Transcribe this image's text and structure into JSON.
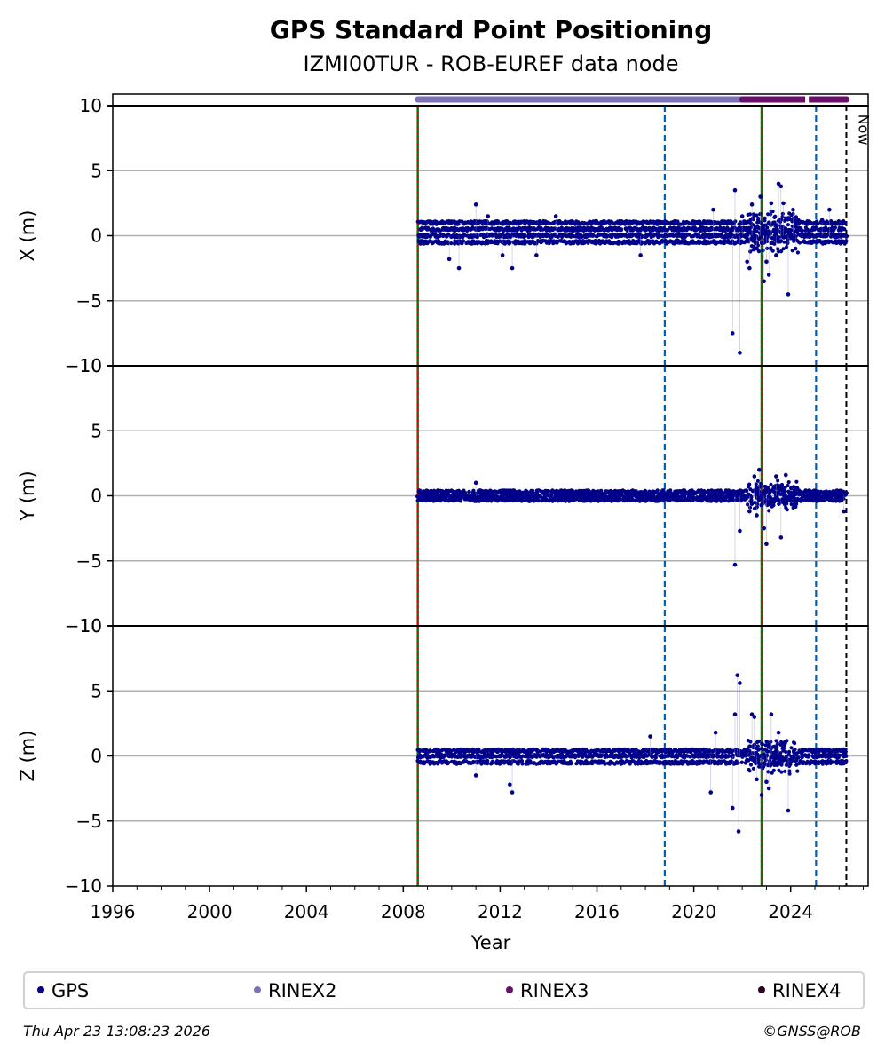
{
  "title": "GPS Standard Point Positioning",
  "subtitle": "IZMI00TUR - ROB-EUREF data node",
  "footer": {
    "timestamp": "Thu Apr 23 13:08:23 2026",
    "copyright": "©GNSS@ROB"
  },
  "legend": [
    {
      "label": "GPS",
      "color": "#00008b"
    },
    {
      "label": "RINEX2",
      "color": "#7b72b8"
    },
    {
      "label": "RINEX3",
      "color": "#6a0f6a"
    },
    {
      "label": "RINEX4",
      "color": "#2a0020"
    }
  ],
  "chart_data": {
    "type": "scatter",
    "xlabel": "Year",
    "xlim": [
      1996,
      2027.2
    ],
    "x_ticks": [
      "1996",
      "2000",
      "2004",
      "2008",
      "2012",
      "2016",
      "2020",
      "2024"
    ],
    "x_tick_values": [
      1996,
      2000,
      2004,
      2008,
      2012,
      2016,
      2020,
      2024
    ],
    "grid": "horizontal",
    "legend_position": "bottom",
    "now_label": "Now",
    "now_year": 2026.3,
    "station_changes": [
      2008.6,
      2022.8
    ],
    "equipment_changes": [
      2018.8,
      2025.05
    ],
    "availability": [
      {
        "name": "RINEX2",
        "start": 2008.6,
        "end": 2026.3,
        "color": "#7b72b8"
      },
      {
        "name": "RINEX3",
        "start": 2022.0,
        "end": 2026.3,
        "color": "#6a0f6a"
      }
    ],
    "series_color": "#00008b",
    "panels": [
      {
        "ylabel": "X (m)",
        "ylim": [
          -10,
          10
        ],
        "y_ticks": [
          "−10",
          "−5",
          "0",
          "5",
          "10"
        ],
        "y_tick_values": [
          -10,
          -5,
          0,
          5,
          10
        ],
        "band": {
          "start": 2008.6,
          "end": 2026.3,
          "levels": [
            -0.5,
            0,
            0.5,
            1.0
          ]
        },
        "outliers": [
          {
            "x": 2009.9,
            "y": -1.8
          },
          {
            "x": 2010.3,
            "y": -2.5
          },
          {
            "x": 2011.0,
            "y": 2.4
          },
          {
            "x": 2011.5,
            "y": 1.5
          },
          {
            "x": 2012.1,
            "y": -1.5
          },
          {
            "x": 2012.5,
            "y": -2.5
          },
          {
            "x": 2013.5,
            "y": -1.5
          },
          {
            "x": 2014.3,
            "y": 1.5
          },
          {
            "x": 2017.8,
            "y": -1.5
          },
          {
            "x": 2020.8,
            "y": 2.0
          },
          {
            "x": 2021.6,
            "y": -7.5
          },
          {
            "x": 2021.7,
            "y": 3.5
          },
          {
            "x": 2021.9,
            "y": -9.0
          },
          {
            "x": 2022.0,
            "y": 1.5
          },
          {
            "x": 2022.2,
            "y": -2.0
          },
          {
            "x": 2022.4,
            "y": 2.4
          },
          {
            "x": 2022.6,
            "y": -1.0
          },
          {
            "x": 2022.75,
            "y": 3.0
          },
          {
            "x": 2022.9,
            "y": -3.5
          },
          {
            "x": 2023.0,
            "y": -2.0
          },
          {
            "x": 2023.2,
            "y": 2.5
          },
          {
            "x": 2023.4,
            "y": -1.5
          },
          {
            "x": 2023.5,
            "y": 4.0
          },
          {
            "x": 2023.6,
            "y": 3.8
          },
          {
            "x": 2023.7,
            "y": 2.5
          },
          {
            "x": 2023.9,
            "y": -4.5
          },
          {
            "x": 2024.1,
            "y": 2.0
          },
          {
            "x": 2024.2,
            "y": -1.0
          },
          {
            "x": 2025.3,
            "y": 1.2
          },
          {
            "x": 2025.6,
            "y": 2.0
          },
          {
            "x": 2022.3,
            "y": -2.5
          },
          {
            "x": 2023.1,
            "y": -3.0
          }
        ]
      },
      {
        "ylabel": "Y (m)",
        "ylim": [
          -10,
          10
        ],
        "y_ticks": [
          "−10",
          "−5",
          "0",
          "5",
          "10"
        ],
        "y_tick_values": [
          -10,
          -5,
          0,
          5,
          10
        ],
        "band": {
          "start": 2008.6,
          "end": 2026.3,
          "levels": [
            -0.3,
            0,
            0.3
          ]
        },
        "outliers": [
          {
            "x": 2011.0,
            "y": 1.0
          },
          {
            "x": 2021.7,
            "y": -5.3
          },
          {
            "x": 2021.9,
            "y": -2.7
          },
          {
            "x": 2022.5,
            "y": 1.5
          },
          {
            "x": 2022.7,
            "y": 2.0
          },
          {
            "x": 2022.9,
            "y": -2.5
          },
          {
            "x": 2023.0,
            "y": -3.7
          },
          {
            "x": 2023.4,
            "y": 1.5
          },
          {
            "x": 2023.6,
            "y": -3.2
          },
          {
            "x": 2023.8,
            "y": 1.6
          },
          {
            "x": 2022.3,
            "y": -1.2
          },
          {
            "x": 2022.6,
            "y": -1.5
          },
          {
            "x": 2026.2,
            "y": -1.2
          }
        ]
      },
      {
        "ylabel": "Z (m)",
        "ylim": [
          -10,
          10
        ],
        "y_ticks": [
          "−10",
          "−5",
          "0",
          "5",
          "10"
        ],
        "y_tick_values": [
          -10,
          -5,
          0,
          5,
          10
        ],
        "band": {
          "start": 2008.6,
          "end": 2026.3,
          "levels": [
            -0.5,
            0,
            0.4
          ]
        },
        "outliers": [
          {
            "x": 2011.0,
            "y": -1.5
          },
          {
            "x": 2012.4,
            "y": -2.2
          },
          {
            "x": 2012.5,
            "y": -2.8
          },
          {
            "x": 2018.2,
            "y": 1.5
          },
          {
            "x": 2020.7,
            "y": -2.8
          },
          {
            "x": 2020.9,
            "y": 1.8
          },
          {
            "x": 2021.6,
            "y": -4.0
          },
          {
            "x": 2021.7,
            "y": 3.2
          },
          {
            "x": 2021.8,
            "y": 6.2
          },
          {
            "x": 2021.85,
            "y": -5.8
          },
          {
            "x": 2021.9,
            "y": 5.6
          },
          {
            "x": 2022.4,
            "y": 3.2
          },
          {
            "x": 2022.5,
            "y": 3.0
          },
          {
            "x": 2022.8,
            "y": -3.0
          },
          {
            "x": 2023.1,
            "y": -2.5
          },
          {
            "x": 2023.2,
            "y": 3.2
          },
          {
            "x": 2023.5,
            "y": 1.8
          },
          {
            "x": 2023.9,
            "y": -4.2
          },
          {
            "x": 2022.6,
            "y": -1.8
          },
          {
            "x": 2023.0,
            "y": -2.0
          }
        ]
      }
    ]
  }
}
